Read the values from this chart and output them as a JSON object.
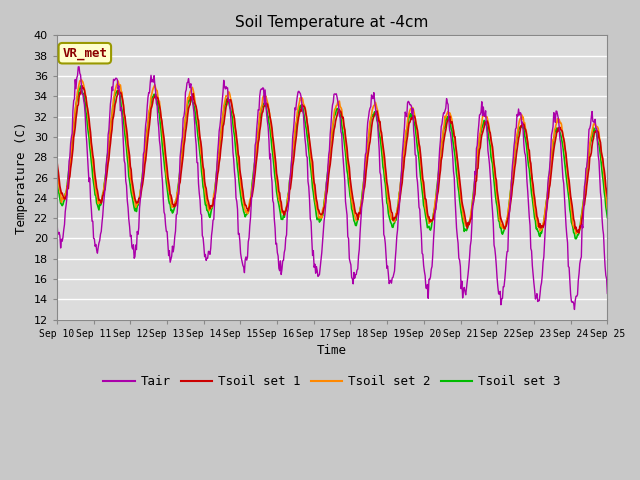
{
  "title": "Soil Temperature at -4cm",
  "xlabel": "Time",
  "ylabel": "Temperature (C)",
  "ylim": [
    12,
    40
  ],
  "yticks": [
    12,
    14,
    16,
    18,
    20,
    22,
    24,
    26,
    28,
    30,
    32,
    34,
    36,
    38,
    40
  ],
  "xtick_labels": [
    "Sep 10",
    "Sep 11",
    "Sep 12",
    "Sep 13",
    "Sep 14",
    "Sep 15",
    "Sep 16",
    "Sep 17",
    "Sep 18",
    "Sep 19",
    "Sep 20",
    "Sep 21",
    "Sep 22",
    "Sep 23",
    "Sep 24",
    "Sep 25"
  ],
  "annotation_text": "VR_met",
  "annotation_color": "#8B0000",
  "annotation_bg": "#FFFFCC",
  "fig_bg": "#C8C8C8",
  "plot_bg": "#DCDCDC",
  "colors": {
    "Tair": "#AA00AA",
    "Tsoil1": "#CC0000",
    "Tsoil2": "#FF8800",
    "Tsoil3": "#00BB00"
  },
  "legend_labels": [
    "Tair",
    "Tsoil set 1",
    "Tsoil set 2",
    "Tsoil set 3"
  ],
  "font_family": "monospace"
}
